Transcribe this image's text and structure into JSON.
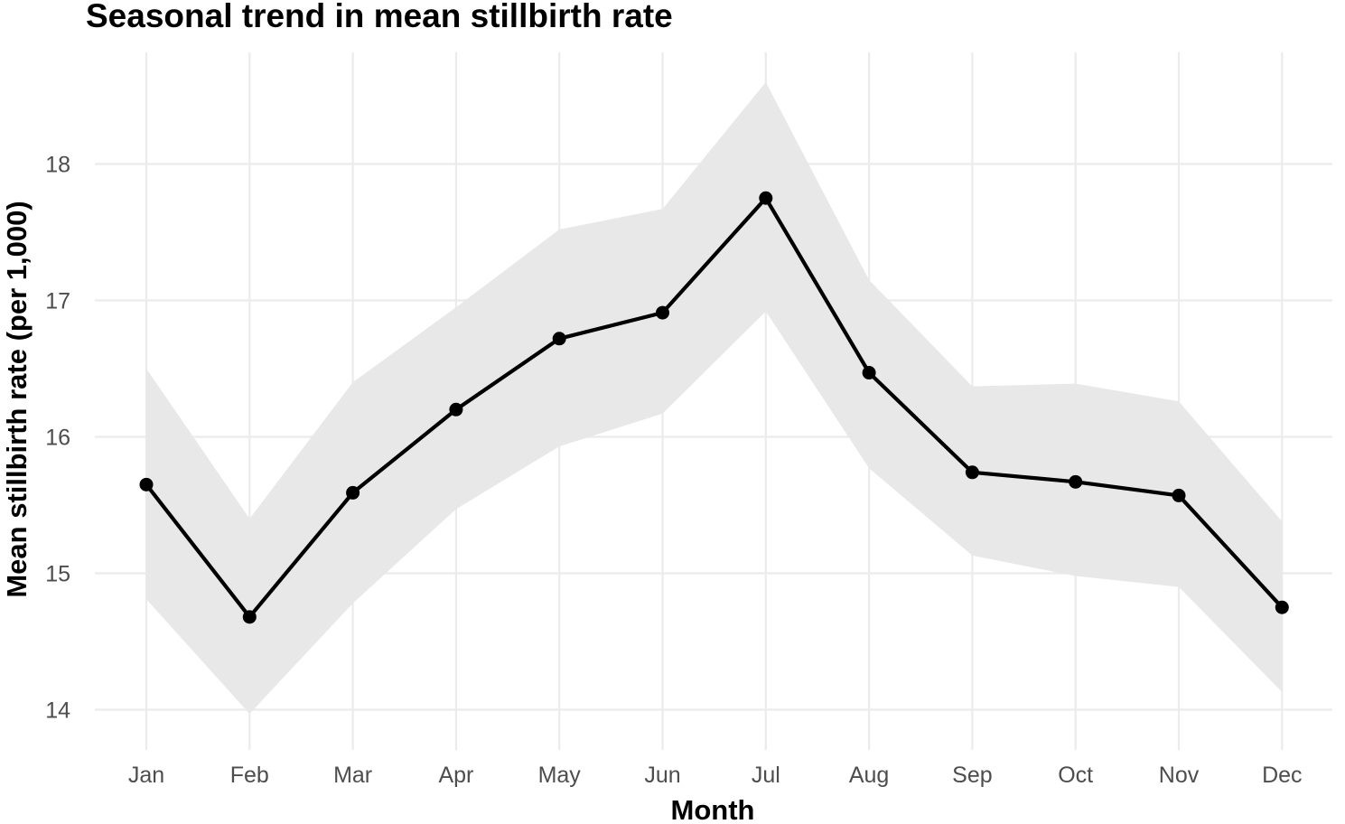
{
  "chart_data": {
    "type": "line",
    "title": "Seasonal trend in mean stillbirth rate",
    "xlabel": "Month",
    "ylabel": "Mean stillbirth rate (per 1,000)",
    "categories": [
      "Jan",
      "Feb",
      "Mar",
      "Apr",
      "May",
      "Jun",
      "Jul",
      "Aug",
      "Sep",
      "Oct",
      "Nov",
      "Dec"
    ],
    "series": [
      {
        "values": [
          15.65,
          14.68,
          15.59,
          16.2,
          16.72,
          16.91,
          17.75,
          16.47,
          15.74,
          15.67,
          15.57,
          14.75
        ]
      }
    ],
    "band": {
      "lower": [
        14.81,
        13.97,
        14.78,
        15.47,
        15.93,
        16.17,
        16.92,
        15.77,
        15.13,
        14.98,
        14.9,
        14.13
      ],
      "upper": [
        16.5,
        15.4,
        16.4,
        16.95,
        17.52,
        17.67,
        18.6,
        17.15,
        16.37,
        16.39,
        16.26,
        15.38
      ]
    },
    "yticks": [
      14,
      15,
      16,
      17,
      18
    ],
    "ylim": [
      13.9,
      18.82
    ],
    "grid": true,
    "colors": {
      "line": "#000000",
      "point": "#000000",
      "band": "#e8e8e8",
      "grid": "#ebebeb"
    }
  }
}
